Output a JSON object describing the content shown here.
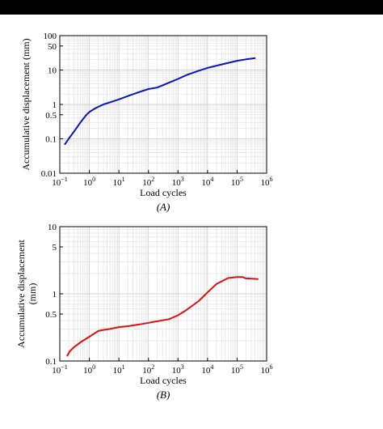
{
  "chart_data": [
    {
      "type": "line",
      "panel_label": "(A)",
      "xlabel": "Load cycles",
      "ylabel": "Accumulative displacement (mm)",
      "xscale": "log",
      "yscale": "log",
      "xlim": [
        0.1,
        1000000
      ],
      "ylim": [
        0.01,
        100
      ],
      "x_ticks": [
        {
          "base": "10",
          "exp": "−1"
        },
        {
          "base": "10",
          "exp": "0"
        },
        {
          "base": "10",
          "exp": "1"
        },
        {
          "base": "10",
          "exp": "2"
        },
        {
          "base": "10",
          "exp": "3"
        },
        {
          "base": "10",
          "exp": "4"
        },
        {
          "base": "10",
          "exp": "5"
        },
        {
          "base": "10",
          "exp": "6"
        }
      ],
      "y_ticks": [
        {
          "value": 0.01,
          "label": "0.01"
        },
        {
          "value": 0.1,
          "label": "0.1"
        },
        {
          "value": 0.5,
          "label": "0.5"
        },
        {
          "value": 1,
          "label": "1"
        },
        {
          "value": 10,
          "label": "10"
        },
        {
          "value": 50,
          "label": "50"
        },
        {
          "value": 100,
          "label": "100"
        }
      ],
      "grid": true,
      "series": [
        {
          "color": "#0a14c8",
          "x": [
            0.15,
            0.2,
            0.3,
            0.5,
            0.8,
            1,
            1.5,
            2,
            3,
            5,
            10,
            20,
            50,
            100,
            200,
            300,
            500,
            1000,
            2000,
            5000,
            10000,
            30000,
            100000,
            200000,
            400000
          ],
          "y": [
            0.07,
            0.1,
            0.16,
            0.3,
            0.5,
            0.6,
            0.75,
            0.85,
            1.0,
            1.15,
            1.4,
            1.75,
            2.3,
            2.8,
            3.1,
            3.6,
            4.3,
            5.5,
            7.2,
            9.5,
            11.5,
            14.5,
            18.5,
            20.5,
            22
          ]
        }
      ]
    },
    {
      "type": "line",
      "panel_label": "(B)",
      "xlabel": "Load cycles",
      "ylabel": "Accumulative displacement (mm)",
      "xscale": "log",
      "yscale": "log",
      "xlim": [
        0.1,
        1000000
      ],
      "ylim": [
        0.1,
        10
      ],
      "x_ticks": [
        {
          "base": "10",
          "exp": "−1"
        },
        {
          "base": "10",
          "exp": "0"
        },
        {
          "base": "10",
          "exp": "1"
        },
        {
          "base": "10",
          "exp": "2"
        },
        {
          "base": "10",
          "exp": "3"
        },
        {
          "base": "10",
          "exp": "4"
        },
        {
          "base": "10",
          "exp": "5"
        },
        {
          "base": "10",
          "exp": "6"
        }
      ],
      "y_ticks": [
        {
          "value": 0.1,
          "label": "0.1"
        },
        {
          "value": 0.5,
          "label": "0.5"
        },
        {
          "value": 1,
          "label": "1"
        },
        {
          "value": 5,
          "label": "5"
        },
        {
          "value": 10,
          "label": "10"
        }
      ],
      "grid": true,
      "series": [
        {
          "color": "#e01010",
          "x": [
            0.18,
            0.22,
            0.3,
            0.5,
            1,
            2,
            3,
            5,
            10,
            20,
            50,
            100,
            200,
            500,
            1000,
            2000,
            5000,
            10000,
            20000,
            50000,
            100000,
            150000,
            200000,
            300000,
            500000
          ],
          "y": [
            0.12,
            0.14,
            0.16,
            0.19,
            0.23,
            0.28,
            0.29,
            0.3,
            0.32,
            0.33,
            0.35,
            0.37,
            0.39,
            0.42,
            0.48,
            0.58,
            0.78,
            1.05,
            1.4,
            1.72,
            1.78,
            1.78,
            1.7,
            1.68,
            1.66
          ]
        }
      ]
    }
  ]
}
